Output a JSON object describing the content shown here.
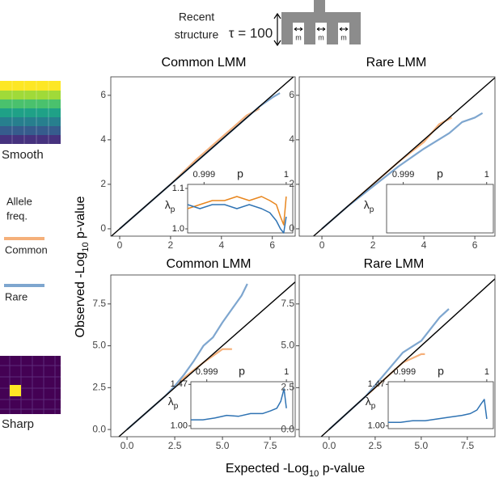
{
  "diagram": {
    "line1": "Recent",
    "line2": "structure",
    "tau": "τ = 100",
    "migration": [
      "m",
      "m",
      "m"
    ]
  },
  "legend": {
    "title_1": "Allele",
    "title_2": "freq.",
    "smooth": "Smooth",
    "sharp": "Sharp"
  },
  "axis_labels": {
    "y": {
      "pre": "Observed -Log",
      "sub": "10",
      "post": " p-value"
    },
    "x": {
      "pre": "Expected -Log",
      "sub": "10",
      "post": " p-value"
    }
  },
  "chart_data": [
    {
      "type": "line",
      "title": "Common LMM",
      "xlim": [
        -0.35,
        6.9
      ],
      "ylim": [
        -0.33,
        6.83
      ],
      "xticks": [
        0,
        2,
        4,
        6
      ],
      "yticks": [
        0,
        2,
        4,
        6
      ],
      "series": [
        {
          "name": "Common",
          "color": "#f5b07a",
          "x": [
            0,
            1,
            2,
            3,
            4,
            4.5,
            5,
            5.5
          ],
          "values": [
            0,
            1,
            2,
            3.1,
            4.1,
            4.6,
            5.1,
            5.4
          ]
        },
        {
          "name": "Rare",
          "color": "#7ea6cf",
          "x": [
            0,
            1,
            2,
            3,
            4,
            5,
            5.5,
            6,
            6.3
          ],
          "values": [
            0,
            1,
            2,
            3,
            4,
            5,
            5.5,
            5.9,
            6.1
          ]
        }
      ],
      "inset": {
        "x_label": "p",
        "y_label": {
          "symbol": "λ",
          "sub": "p"
        },
        "xlim": [
          0.9988,
          1.00008
        ],
        "ylim": [
          0.99,
          1.11
        ],
        "xticks": [
          0.999,
          1
        ],
        "yticks": [
          {
            "value": 1.0,
            "label": "1.0"
          },
          1.1
        ],
        "series": [
          {
            "color": "#e8861e",
            "x": [
              0.9988,
              0.99895,
              0.9991,
              0.99925,
              0.9994,
              0.99955,
              0.9997,
              0.9998,
              0.99988,
              0.99993,
              0.99997,
              1.0
            ],
            "values": [
              1.05,
              1.06,
              1.07,
              1.07,
              1.08,
              1.07,
              1.08,
              1.07,
              1.06,
              1.03,
              1.01,
              1.08
            ]
          },
          {
            "color": "#2f73b3",
            "x": [
              0.9988,
              0.99895,
              0.9991,
              0.99925,
              0.9994,
              0.99955,
              0.9997,
              0.9998,
              0.99988,
              0.99993,
              0.99997,
              1.0
            ],
            "values": [
              1.06,
              1.05,
              1.06,
              1.06,
              1.05,
              1.06,
              1.05,
              1.04,
              1.02,
              1.0,
              0.99,
              1.03
            ]
          }
        ]
      }
    },
    {
      "type": "line",
      "title": "Rare LMM",
      "xlim": [
        -0.89,
        6.79
      ],
      "ylim": [
        -0.33,
        6.83
      ],
      "xticks": [
        0,
        2,
        4,
        6
      ],
      "yticks": [
        0,
        2,
        4,
        6
      ],
      "series": [
        {
          "color": "#f5b07a",
          "x": [
            0,
            1,
            2,
            3,
            4,
            4.6,
            5.1
          ],
          "values": [
            0,
            1,
            2,
            3,
            3.9,
            4.7,
            5.0
          ]
        },
        {
          "color": "#7ea6cf",
          "x": [
            0,
            1,
            2,
            3,
            4,
            5,
            5.5,
            6,
            6.3
          ],
          "values": [
            0,
            1,
            1.9,
            2.8,
            3.6,
            4.3,
            4.8,
            5.0,
            5.2
          ]
        }
      ],
      "inset": {
        "x_label": "p",
        "y_label": {
          "symbol": "λ",
          "sub": "p"
        },
        "xlim": [
          0.9988,
          1.00008
        ],
        "ylim": [
          0.99,
          1.11
        ],
        "xticks": [
          0.999,
          1
        ],
        "yticks": [],
        "series": []
      }
    },
    {
      "type": "line",
      "title": "Common LMM",
      "xlim": [
        -0.85,
        8.81
      ],
      "ylim": [
        -0.43,
        9.23
      ],
      "xticks": [
        {
          "value": 0,
          "label": "0.0"
        },
        2.5,
        {
          "value": 5,
          "label": "5.0"
        },
        7.5
      ],
      "yticks": [
        {
          "value": 0,
          "label": "0.0"
        },
        2.5,
        {
          "value": 5,
          "label": "5.0"
        },
        7.5
      ],
      "series": [
        {
          "color": "#f5b07a",
          "x": [
            0,
            1,
            2,
            3,
            4,
            5,
            5.5
          ],
          "values": [
            0,
            1,
            2,
            3.1,
            4,
            4.8,
            4.8
          ]
        },
        {
          "color": "#7ea6cf",
          "x": [
            0,
            1,
            2,
            2.5,
            3,
            3.5,
            4,
            4.5,
            5,
            5.5,
            6,
            6.3
          ],
          "values": [
            0,
            1,
            2,
            2.6,
            3.3,
            4.1,
            5.0,
            5.5,
            6.4,
            7.2,
            8.0,
            8.7
          ]
        }
      ],
      "inset": {
        "x_label": "p",
        "y_label": {
          "symbol": "λ",
          "sub": "p"
        },
        "xlim": [
          0.9988,
          1.00008
        ],
        "ylim": [
          0.97,
          1.5
        ],
        "xticks": [
          0.999,
          1
        ],
        "yticks": [
          {
            "value": 1.0,
            "label": "1.00"
          },
          1.47
        ],
        "series": [
          {
            "color": "#2f73b3",
            "x": [
              0.9988,
              0.99895,
              0.9991,
              0.99925,
              0.9994,
              0.99955,
              0.9997,
              0.9998,
              0.99988,
              0.99993,
              0.99997,
              1.0
            ],
            "values": [
              1.07,
              1.07,
              1.09,
              1.12,
              1.11,
              1.14,
              1.14,
              1.17,
              1.2,
              1.28,
              1.42,
              1.2
            ]
          }
        ]
      }
    },
    {
      "type": "line",
      "title": "Rare LMM",
      "xlim": [
        -1.62,
        9.0
      ],
      "ylim": [
        -0.43,
        9.23
      ],
      "xticks": [
        {
          "value": 0,
          "label": "0.0"
        },
        2.5,
        {
          "value": 5,
          "label": "5.0"
        },
        7.5
      ],
      "yticks": [
        {
          "value": 0,
          "label": "0.0"
        },
        2.5,
        {
          "value": 5,
          "label": "5.0"
        },
        7.5
      ],
      "series": [
        {
          "color": "#f5b07a",
          "x": [
            0,
            1,
            2,
            3,
            4,
            5,
            5.2
          ],
          "values": [
            0,
            1,
            2,
            3,
            4,
            4.5,
            4.5
          ]
        },
        {
          "color": "#7ea6cf",
          "x": [
            0,
            1,
            2,
            3,
            4,
            5,
            5.5,
            6,
            6.5
          ],
          "values": [
            0,
            1,
            2,
            3.3,
            4.6,
            5.3,
            6.0,
            6.7,
            7.2
          ]
        }
      ],
      "inset": {
        "x_label": "p",
        "y_label": {
          "symbol": "λ",
          "sub": "p"
        },
        "xlim": [
          0.9988,
          1.00008
        ],
        "ylim": [
          0.97,
          1.5
        ],
        "xticks": [
          0.999,
          1
        ],
        "yticks": [
          {
            "value": 1.0,
            "label": "1.00"
          },
          1.47
        ],
        "series": [
          {
            "color": "#2f73b3",
            "x": [
              0.9988,
              0.99895,
              0.9991,
              0.99925,
              0.9994,
              0.99955,
              0.9997,
              0.9998,
              0.99988,
              0.99993,
              0.99997,
              1.0
            ],
            "values": [
              1.04,
              1.04,
              1.06,
              1.06,
              1.08,
              1.1,
              1.12,
              1.14,
              1.18,
              1.25,
              1.3,
              1.08
            ]
          }
        ]
      }
    }
  ]
}
